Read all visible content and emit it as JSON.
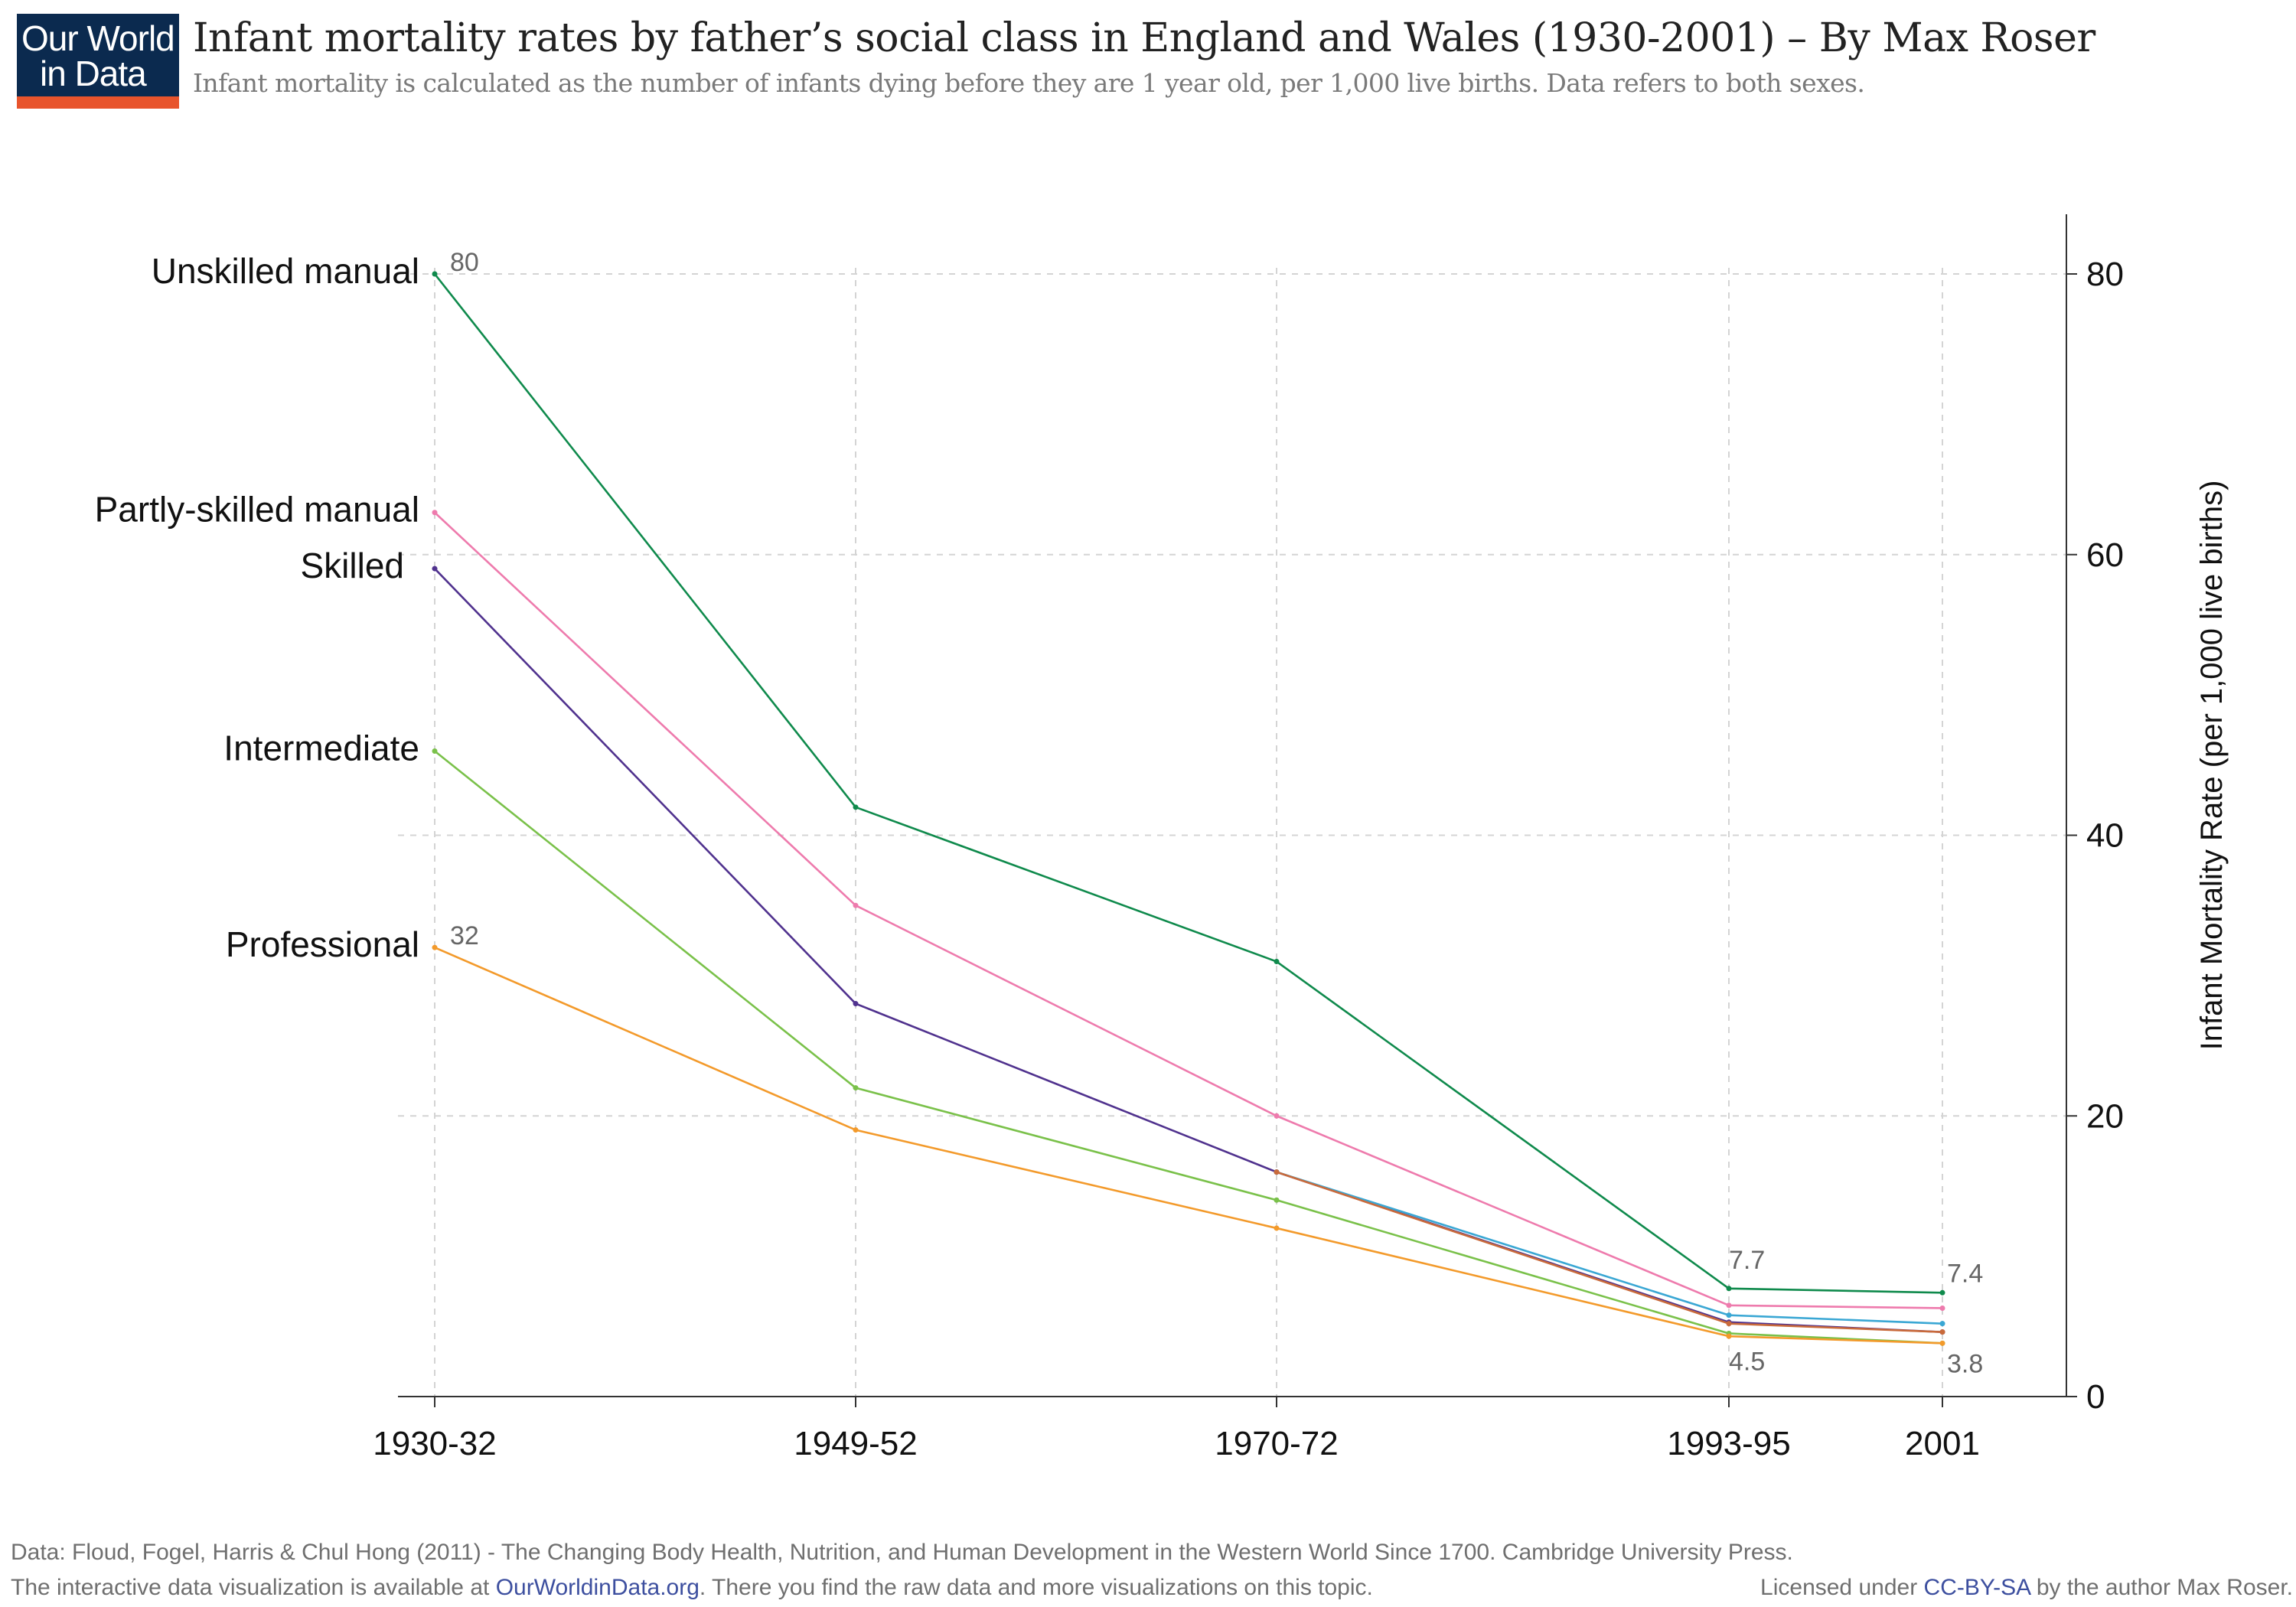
{
  "logo": {
    "line1": "Our World",
    "line2": "in Data"
  },
  "header": {
    "title": "Infant mortality rates by father’s social class in England and Wales (1930-2001) – By Max Roser",
    "subtitle": "Infant mortality is calculated as the number of infants dying before they are 1 year old, per 1,000 live births. Data refers to both sexes."
  },
  "colors": {
    "unskilled": "#0f8a4c",
    "partly": "#ee7bad",
    "skilled": "#50328e",
    "semi": "#3aa7d4",
    "intermediate": "#7ac14a",
    "professional": "#f39a2b",
    "mixed": "#c96a3b"
  },
  "chart_data": {
    "type": "line",
    "categories": [
      "1930-32",
      "1949-52",
      "1970-72",
      "1993-95",
      "2001"
    ],
    "x_positions": [
      1930,
      1949,
      1970,
      1993,
      2001
    ],
    "ylabel": "Infant Mortality Rate (per 1,000 live births)",
    "ylim": [
      0,
      80
    ],
    "yticks": [
      0,
      20,
      40,
      60,
      80
    ],
    "grid": true,
    "series": [
      {
        "name": "Unskilled manual",
        "color_key": "unskilled",
        "values": [
          80,
          42,
          31,
          7.7,
          7.4
        ]
      },
      {
        "name": "Partly-skilled manual",
        "color_key": "partly",
        "values": [
          63,
          35,
          20,
          6.5,
          6.3
        ]
      },
      {
        "name": "Skilled",
        "color_key": "skilled",
        "values": [
          59,
          28,
          16,
          5.3,
          4.6
        ]
      },
      {
        "name": "",
        "color_key": "semi",
        "values": [
          null,
          null,
          16,
          5.8,
          5.2
        ]
      },
      {
        "name": "",
        "color_key": "mixed",
        "values": [
          null,
          null,
          16,
          5.2,
          4.6
        ]
      },
      {
        "name": "Intermediate",
        "color_key": "intermediate",
        "values": [
          46,
          22,
          14,
          4.5,
          3.8
        ]
      },
      {
        "name": "Professional",
        "color_key": "professional",
        "values": [
          32,
          19,
          12,
          4.3,
          3.8
        ]
      }
    ],
    "annotations": [
      {
        "text": "80",
        "x": 1930,
        "y": 80
      },
      {
        "text": "32",
        "x": 1930,
        "y": 32
      },
      {
        "text": "7.7",
        "x": 1993,
        "y": 7.7
      },
      {
        "text": "4.5",
        "x": 1993,
        "y": 4.5
      },
      {
        "text": "7.4",
        "x": 2001,
        "y": 7.4
      },
      {
        "text": "3.8",
        "x": 2001,
        "y": 3.8
      }
    ]
  },
  "footer": {
    "source": "Data: Floud, Fogel, Harris & Chul Hong (2011) - The Changing Body Health, Nutrition, and Human Development in the Western World Since 1700. Cambridge University Press.",
    "interactive_prefix": "The interactive data visualization is available at ",
    "interactive_link": "OurWorldinData.org",
    "interactive_suffix": ". There you find the raw data and more visualizations on this topic.",
    "license_prefix": "Licensed under ",
    "license_link": "CC-BY-SA",
    "license_suffix": " by the author Max Roser."
  }
}
